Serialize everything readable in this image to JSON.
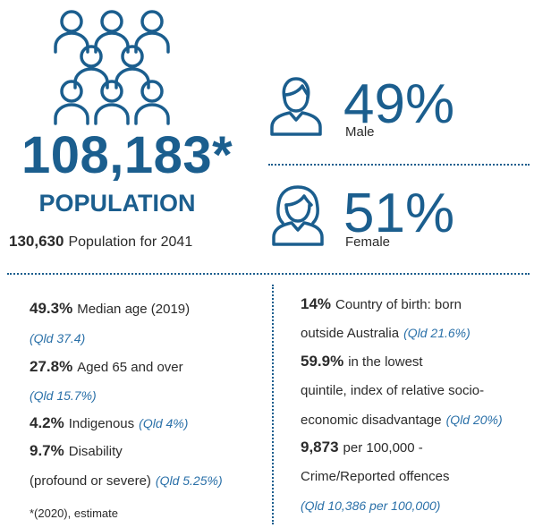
{
  "population": {
    "value": "108,183*",
    "label": "POPULATION",
    "projection_value": "130,630",
    "projection_label": "Population for 2041"
  },
  "male": {
    "value": "49%",
    "label": "Male"
  },
  "female": {
    "value": "51%",
    "label": "Female"
  },
  "left_stats": [
    {
      "value": "49.3%",
      "description": [
        "Median age (2019)"
      ],
      "comparison": "(Qld 37.4)"
    },
    {
      "value": "27.8%",
      "description": [
        "Aged 65 and over"
      ],
      "comparison": "(Qld 15.7%)"
    },
    {
      "value": "4.2%",
      "description": [
        "Indigenous"
      ],
      "comparison": "(Qld 4%)"
    },
    {
      "value": "9.7%",
      "description": [
        "Disability",
        "(profound or severe)"
      ],
      "comparison": "(Qld 5.25%)"
    }
  ],
  "right_stats": [
    {
      "value": "14%",
      "description": [
        "Country of birth: born",
        "outside Australia"
      ],
      "comparison": "(Qld 21.6%)"
    },
    {
      "value": "59.9%",
      "description": [
        "in the lowest",
        "quintile, index of relative socio-",
        "economic disadvantage"
      ],
      "comparison": "(Qld 20%)"
    },
    {
      "value": "9,873",
      "description": [
        "per 100,000 -",
        "Crime/Reported offences"
      ],
      "comparison": "(Qld 10,386 per 100,000)"
    }
  ],
  "footnote": "*(2020), estimate"
}
